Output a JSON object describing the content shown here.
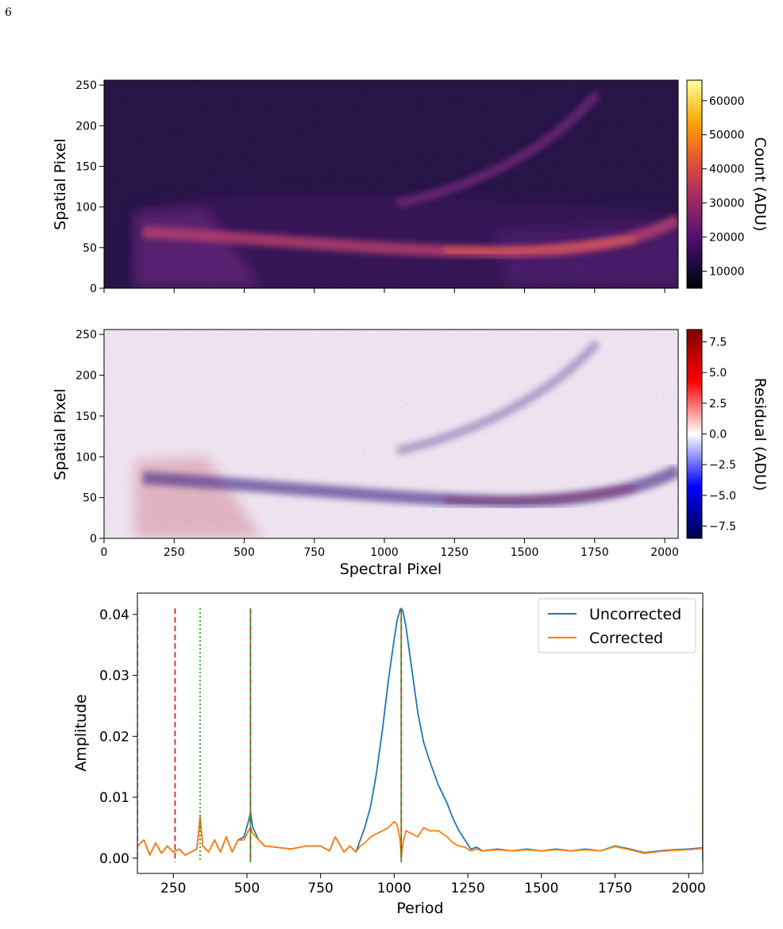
{
  "page_number": "6",
  "chart_data": [
    {
      "type": "heatmap",
      "panel": "raw-frame",
      "xlim": [
        0,
        2048
      ],
      "ylim": [
        0,
        256
      ],
      "xticks": [
        "0",
        "250",
        "500",
        "750",
        "1000",
        "1250",
        "1500",
        "1750",
        "2000"
      ],
      "xtick_values": [
        0,
        250,
        500,
        750,
        1000,
        1250,
        1500,
        1750,
        2000
      ],
      "yticks": [
        "0",
        "50",
        "100",
        "150",
        "200",
        "250"
      ],
      "ytick_values": [
        0,
        50,
        100,
        150,
        200,
        250
      ],
      "ylabel": "Spatial Pixel",
      "xlabel": "",
      "colormap": "inferno",
      "colorbar": {
        "label": "Count (ADU)",
        "range": [
          5000,
          66000
        ],
        "ticks": [
          "10000",
          "20000",
          "30000",
          "40000",
          "50000",
          "60000"
        ],
        "tick_values": [
          10000,
          20000,
          30000,
          40000,
          50000,
          60000
        ]
      },
      "colors": [
        "#000004",
        "#1b0c41",
        "#4a0c6b",
        "#781c6d",
        "#a52c60",
        "#cf4446",
        "#ed6925",
        "#fb9b06",
        "#f7d13d",
        "#fcffa4"
      ]
    },
    {
      "type": "heatmap",
      "panel": "residual",
      "xlim": [
        0,
        2048
      ],
      "ylim": [
        0,
        256
      ],
      "xticks": [
        "0",
        "250",
        "500",
        "750",
        "1000",
        "1250",
        "1500",
        "1750",
        "2000"
      ],
      "xtick_values": [
        0,
        250,
        500,
        750,
        1000,
        1250,
        1500,
        1750,
        2000
      ],
      "yticks": [
        "0",
        "50",
        "100",
        "150",
        "200",
        "250"
      ],
      "ytick_values": [
        0,
        50,
        100,
        150,
        200,
        250
      ],
      "ylabel": "Spatial Pixel",
      "xlabel": "Spectral Pixel",
      "colormap": "seismic",
      "colorbar": {
        "label": "Residual (ADU)",
        "range": [
          -8.5,
          8.5
        ],
        "ticks": [
          "−7.5",
          "−5.0",
          "−2.5",
          "0.0",
          "2.5",
          "5.0",
          "7.5"
        ],
        "tick_values": [
          -7.5,
          -5.0,
          -2.5,
          0.0,
          2.5,
          5.0,
          7.5
        ]
      },
      "colors": [
        "#00004c",
        "#0000ff",
        "#ffffff",
        "#ff0000",
        "#800000"
      ]
    },
    {
      "type": "line",
      "panel": "periodogram",
      "xlabel": "Period",
      "ylabel": "Amplitude",
      "xlim": [
        128,
        2048
      ],
      "ylim": [
        -0.0025,
        0.0435
      ],
      "xticks": [
        "250",
        "500",
        "750",
        "1000",
        "1250",
        "1500",
        "1750",
        "2000"
      ],
      "xtick_values": [
        250,
        500,
        750,
        1000,
        1250,
        1500,
        1750,
        2000
      ],
      "yticks": [
        "0.00",
        "0.01",
        "0.02",
        "0.03",
        "0.04"
      ],
      "ytick_values": [
        0.0,
        0.01,
        0.02,
        0.03,
        0.04
      ],
      "legend_position": "top-right",
      "series": [
        {
          "name": "Uncorrected",
          "color": "#1f77b4",
          "x": [
            128,
            150,
            170,
            190,
            210,
            230,
            250,
            270,
            290,
            310,
            330,
            341,
            350,
            370,
            390,
            410,
            430,
            450,
            470,
            490,
            505,
            512,
            520,
            540,
            560,
            600,
            650,
            700,
            750,
            780,
            800,
            830,
            850,
            870,
            885,
            900,
            920,
            940,
            960,
            980,
            1000,
            1010,
            1020,
            1024,
            1030,
            1040,
            1060,
            1080,
            1100,
            1120,
            1150,
            1180,
            1200,
            1220,
            1240,
            1260,
            1280,
            1300,
            1350,
            1400,
            1450,
            1500,
            1550,
            1600,
            1650,
            1700,
            1750,
            1800,
            1850,
            1900,
            1950,
            2000,
            2048
          ],
          "y": [
            0.002,
            0.003,
            0.0005,
            0.0025,
            0.0008,
            0.002,
            0.001,
            0.0015,
            0.0005,
            0.001,
            0.0015,
            0.0065,
            0.002,
            0.001,
            0.003,
            0.001,
            0.0035,
            0.001,
            0.003,
            0.0035,
            0.006,
            0.0075,
            0.005,
            0.003,
            0.002,
            0.0018,
            0.0015,
            0.002,
            0.002,
            0.0012,
            0.0035,
            0.001,
            0.002,
            0.001,
            0.003,
            0.005,
            0.0085,
            0.014,
            0.021,
            0.029,
            0.036,
            0.039,
            0.0408,
            0.041,
            0.0405,
            0.038,
            0.031,
            0.024,
            0.019,
            0.016,
            0.012,
            0.009,
            0.0065,
            0.0045,
            0.003,
            0.0015,
            0.0018,
            0.0012,
            0.0015,
            0.0012,
            0.0015,
            0.0012,
            0.0015,
            0.0012,
            0.0015,
            0.0012,
            0.002,
            0.0015,
            0.0009,
            0.0012,
            0.0014,
            0.0015,
            0.0017
          ]
        },
        {
          "name": "Corrected",
          "color": "#ff7f0e",
          "x": [
            128,
            150,
            170,
            190,
            210,
            230,
            250,
            270,
            290,
            310,
            330,
            341,
            350,
            370,
            390,
            410,
            430,
            450,
            470,
            490,
            505,
            512,
            520,
            540,
            560,
            600,
            650,
            700,
            750,
            780,
            800,
            830,
            850,
            870,
            885,
            900,
            920,
            940,
            960,
            980,
            1000,
            1010,
            1020,
            1024,
            1030,
            1040,
            1060,
            1080,
            1100,
            1120,
            1150,
            1180,
            1200,
            1220,
            1240,
            1260,
            1280,
            1300,
            1350,
            1400,
            1450,
            1500,
            1550,
            1600,
            1650,
            1700,
            1750,
            1800,
            1850,
            1900,
            1950,
            2000,
            2048
          ],
          "y": [
            0.002,
            0.003,
            0.0005,
            0.0025,
            0.0008,
            0.002,
            0.001,
            0.0015,
            0.0005,
            0.001,
            0.0015,
            0.007,
            0.002,
            0.001,
            0.003,
            0.001,
            0.0035,
            0.001,
            0.003,
            0.003,
            0.0045,
            0.005,
            0.004,
            0.003,
            0.002,
            0.0018,
            0.0015,
            0.002,
            0.002,
            0.0012,
            0.0035,
            0.001,
            0.002,
            0.001,
            0.002,
            0.0025,
            0.0035,
            0.004,
            0.0045,
            0.005,
            0.006,
            0.0055,
            0.003,
            0.0003,
            0.0025,
            0.0045,
            0.004,
            0.0035,
            0.005,
            0.0045,
            0.0045,
            0.0035,
            0.0025,
            0.002,
            0.0018,
            0.0012,
            0.0015,
            0.0012,
            0.0014,
            0.0012,
            0.0014,
            0.0012,
            0.0014,
            0.0012,
            0.0014,
            0.0012,
            0.0019,
            0.0014,
            0.0008,
            0.0011,
            0.0013,
            0.0014,
            0.0016
          ]
        }
      ],
      "vertical_lines": [
        {
          "x": 256,
          "color": "#d62728",
          "style": "dashed"
        },
        {
          "x": 341,
          "color": "#2ca02c",
          "style": "dotted"
        },
        {
          "x": 512,
          "color": "#d62728",
          "style": "dashed"
        },
        {
          "x": 512,
          "color": "#2ca02c",
          "style": "dashed-offset"
        },
        {
          "x": 1024,
          "color": "#d62728",
          "style": "dashed"
        },
        {
          "x": 1024,
          "color": "#2ca02c",
          "style": "dashed-offset"
        },
        {
          "x": 2048,
          "color": "#d62728",
          "style": "dashed"
        },
        {
          "x": 2048,
          "color": "#2ca02c",
          "style": "dashed-offset"
        },
        {
          "x": 128,
          "color": "#d62728",
          "style": "dashed"
        }
      ]
    }
  ]
}
